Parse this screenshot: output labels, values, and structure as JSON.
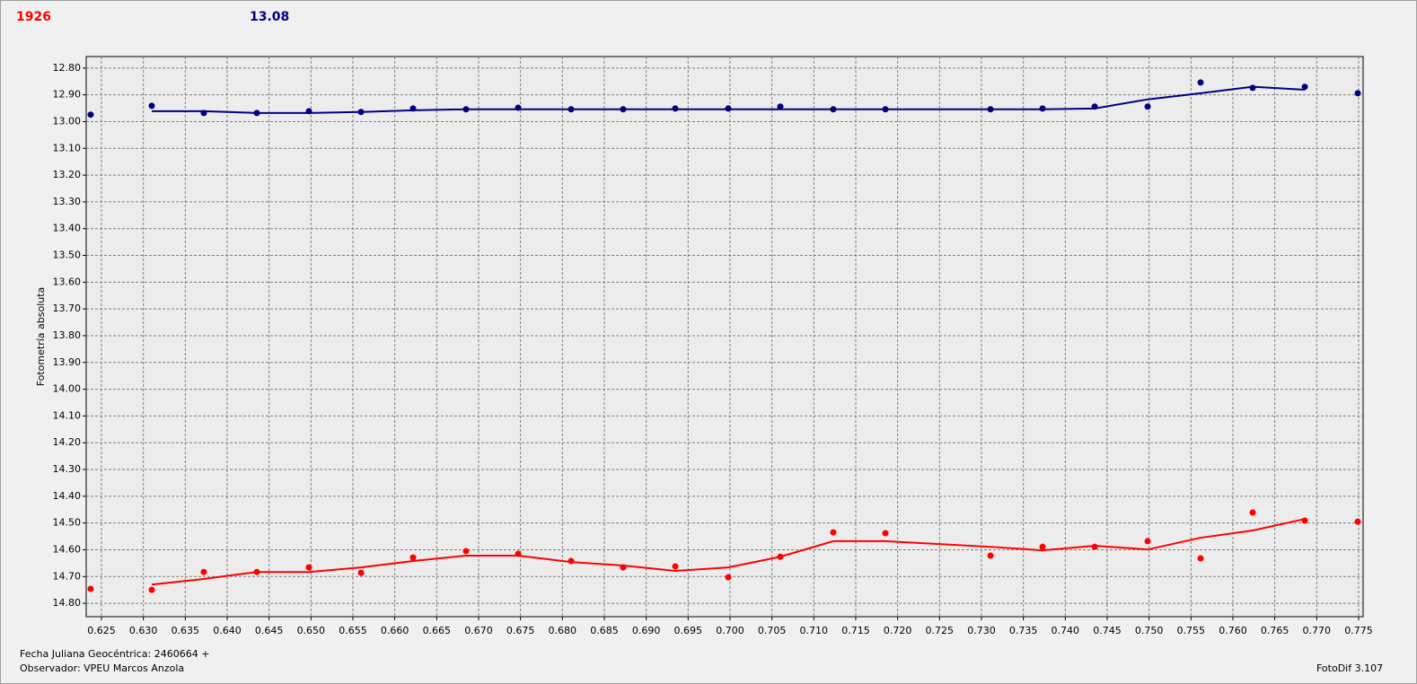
{
  "header": {
    "left": "1926",
    "right": "13.08"
  },
  "footer": {
    "date": "Fecha Juliana Geocéntrica: 2460664 +",
    "observer": "Observador: VPEU Marcos Anzola",
    "software": "FotoDif 3.107"
  },
  "chart_data": {
    "type": "scatter",
    "y_label": "Fotometría absoluta",
    "grid": true,
    "x": [
      0.62371,
      0.631,
      0.63721,
      0.64354,
      0.64975,
      0.65597,
      0.66218,
      0.6685,
      0.67472,
      0.68104,
      0.68725,
      0.69347,
      0.69979,
      0.706,
      0.71232,
      0.71854,
      0.73108,
      0.73729,
      0.74351,
      0.74983,
      0.75615,
      0.76236,
      0.76858,
      0.7749
    ],
    "xlim": [
      0.62318,
      0.77554
    ],
    "xticks": [
      0.625,
      {
        "value": 0.63,
        "label": "0.630"
      },
      0.635,
      {
        "value": 0.64,
        "label": "0.640"
      },
      0.645,
      {
        "value": 0.65,
        "label": "0.650"
      },
      0.655,
      {
        "value": 0.66,
        "label": "0.660"
      },
      0.665,
      {
        "value": 0.67,
        "label": "0.670"
      },
      0.675,
      {
        "value": 0.68,
        "label": "0.680"
      },
      0.685,
      {
        "value": 0.69,
        "label": "0.690"
      },
      0.695,
      {
        "value": 0.7,
        "label": "0.700"
      },
      0.705,
      {
        "value": 0.71,
        "label": "0.710"
      },
      0.715,
      {
        "value": 0.72,
        "label": "0.720"
      },
      0.725,
      {
        "value": 0.73,
        "label": "0.730"
      },
      0.735,
      {
        "value": 0.74,
        "label": "0.740"
      },
      0.745,
      {
        "value": 0.75,
        "label": "0.750"
      },
      0.755,
      {
        "value": 0.76,
        "label": "0.760"
      },
      0.765,
      {
        "value": 0.77,
        "label": "0.770"
      },
      0.775
    ],
    "ylim": [
      14.85,
      12.757
    ],
    "yticks": [
      {
        "value": 12.8,
        "label": "12.80"
      },
      {
        "value": 12.9,
        "label": "12.90"
      },
      {
        "value": 13.0,
        "label": "13.00"
      },
      {
        "value": 13.1,
        "label": "13.10"
      },
      {
        "value": 13.2,
        "label": "13.20"
      },
      {
        "value": 13.3,
        "label": "13.30"
      },
      {
        "value": 13.4,
        "label": "13.40"
      },
      {
        "value": 13.5,
        "label": "13.50"
      },
      {
        "value": 13.6,
        "label": "13.60"
      },
      {
        "value": 13.7,
        "label": "13.70"
      },
      {
        "value": 13.8,
        "label": "13.80"
      },
      {
        "value": 13.9,
        "label": "13.90"
      },
      {
        "value": 14.0,
        "label": "14.00"
      },
      {
        "value": 14.1,
        "label": "14.10"
      },
      {
        "value": 14.2,
        "label": "14.20"
      },
      {
        "value": 14.3,
        "label": "14.30"
      },
      {
        "value": 14.4,
        "label": "14.40"
      },
      {
        "value": 14.5,
        "label": "14.50"
      },
      {
        "value": 14.6,
        "label": "14.60"
      },
      {
        "value": 14.7,
        "label": "14.70"
      },
      {
        "value": 14.8,
        "label": "14.80"
      }
    ],
    "series": [
      {
        "color": "#000080",
        "style": "points",
        "values": [
          12.974,
          12.941,
          12.968,
          12.968,
          12.961,
          12.964,
          12.951,
          12.954,
          12.948,
          12.954,
          12.954,
          12.951,
          12.951,
          12.944,
          12.954,
          12.954,
          12.954,
          12.951,
          12.944,
          12.944,
          12.854,
          12.874,
          12.87,
          12.894
        ]
      },
      {
        "color": "#000080",
        "style": "line",
        "values": [
          null,
          12.961,
          12.961,
          12.968,
          12.968,
          12.964,
          12.958,
          12.954,
          12.954,
          12.954,
          12.954,
          12.954,
          12.954,
          12.954,
          12.954,
          12.954,
          12.954,
          12.954,
          12.951,
          12.917,
          12.894,
          12.87,
          12.881,
          null
        ]
      },
      {
        "color": "#ff0000",
        "style": "points",
        "values": [
          14.746,
          14.75,
          14.683,
          14.683,
          14.666,
          14.686,
          14.629,
          14.605,
          14.615,
          14.642,
          14.666,
          14.662,
          14.703,
          14.626,
          14.535,
          14.538,
          14.622,
          14.589,
          14.589,
          14.568,
          14.632,
          14.461,
          14.491,
          14.495
        ]
      },
      {
        "color": "#ff0000",
        "style": "line",
        "values": [
          null,
          14.73,
          14.709,
          14.683,
          14.683,
          14.666,
          14.642,
          14.622,
          14.622,
          14.646,
          14.659,
          14.679,
          14.666,
          14.626,
          14.568,
          14.568,
          14.589,
          14.602,
          14.585,
          14.599,
          14.555,
          14.528,
          14.485,
          null
        ]
      }
    ]
  }
}
